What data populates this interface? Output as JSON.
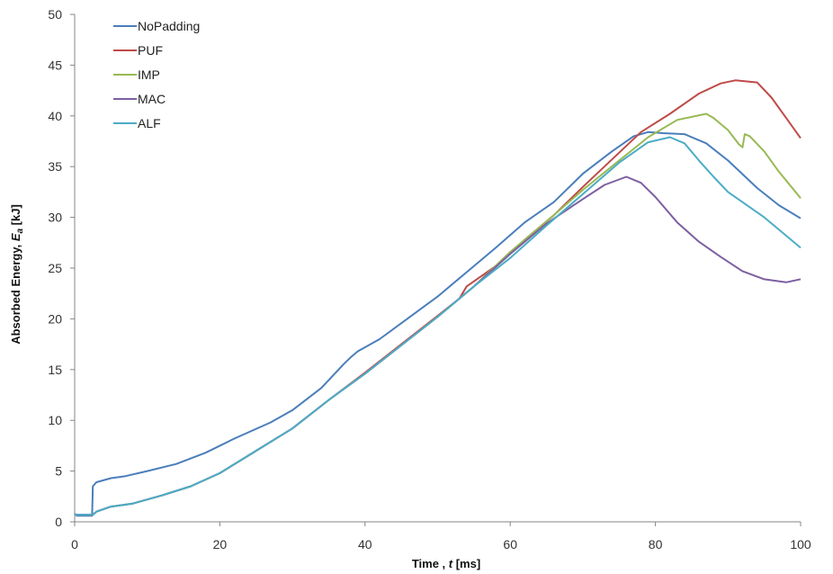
{
  "chart_data": {
    "type": "line",
    "xlabel_prefix": "Time , ",
    "xlabel_var": "t",
    "xlabel_unit": " [ms]",
    "ylabel_prefix": "Absorbed Energy, ",
    "ylabel_var": "E",
    "ylabel_sub": "a",
    "ylabel_unit": " [kJ]",
    "xlim": [
      0,
      100
    ],
    "ylim": [
      0,
      50
    ],
    "xticks": [
      0,
      20,
      40,
      60,
      80,
      100
    ],
    "yticks": [
      0,
      5,
      10,
      15,
      20,
      25,
      30,
      35,
      40,
      45,
      50
    ],
    "grid": false,
    "legend_position": "top-left",
    "series": [
      {
        "name": "NoPadding",
        "color": "#4a7ebb",
        "points": [
          [
            0,
            0.8
          ],
          [
            0.3,
            0.6
          ],
          [
            2.4,
            0.6
          ],
          [
            2.5,
            3.5
          ],
          [
            3,
            3.9
          ],
          [
            5,
            4.3
          ],
          [
            7,
            4.5
          ],
          [
            10,
            5.0
          ],
          [
            14,
            5.7
          ],
          [
            18,
            6.8
          ],
          [
            22,
            8.2
          ],
          [
            27,
            9.8
          ],
          [
            30,
            11.0
          ],
          [
            34,
            13.2
          ],
          [
            37,
            15.5
          ],
          [
            38,
            16.2
          ],
          [
            39,
            16.8
          ],
          [
            42,
            18.0
          ],
          [
            46,
            20.1
          ],
          [
            50,
            22.2
          ],
          [
            54,
            24.6
          ],
          [
            58,
            27.0
          ],
          [
            62,
            29.5
          ],
          [
            66,
            31.5
          ],
          [
            70,
            34.3
          ],
          [
            74,
            36.5
          ],
          [
            77,
            38.0
          ],
          [
            79,
            38.4
          ],
          [
            81,
            38.3
          ],
          [
            84,
            38.2
          ],
          [
            87,
            37.3
          ],
          [
            90,
            35.6
          ],
          [
            94,
            32.9
          ],
          [
            97,
            31.2
          ],
          [
            100,
            29.9
          ]
        ]
      },
      {
        "name": "PUF",
        "color": "#be4b48",
        "points": [
          [
            0,
            0.7
          ],
          [
            2.5,
            0.7
          ],
          [
            3,
            1.0
          ],
          [
            5,
            1.5
          ],
          [
            8,
            1.8
          ],
          [
            12,
            2.6
          ],
          [
            16,
            3.5
          ],
          [
            20,
            4.8
          ],
          [
            25,
            7.0
          ],
          [
            30,
            9.2
          ],
          [
            35,
            12.0
          ],
          [
            40,
            14.7
          ],
          [
            45,
            17.5
          ],
          [
            50,
            20.3
          ],
          [
            53,
            22.0
          ],
          [
            54,
            23.2
          ],
          [
            58,
            25.2
          ],
          [
            62,
            27.8
          ],
          [
            66,
            30.2
          ],
          [
            70,
            33.0
          ],
          [
            74,
            35.7
          ],
          [
            78,
            38.4
          ],
          [
            82,
            40.2
          ],
          [
            86,
            42.2
          ],
          [
            89,
            43.2
          ],
          [
            91,
            43.5
          ],
          [
            94,
            43.3
          ],
          [
            96,
            41.8
          ],
          [
            98,
            39.8
          ],
          [
            100,
            37.8
          ]
        ]
      },
      {
        "name": "IMP",
        "color": "#98b954",
        "points": [
          [
            0,
            0.7
          ],
          [
            2.5,
            0.7
          ],
          [
            3,
            1.0
          ],
          [
            5,
            1.5
          ],
          [
            8,
            1.8
          ],
          [
            12,
            2.6
          ],
          [
            16,
            3.5
          ],
          [
            20,
            4.8
          ],
          [
            25,
            7.0
          ],
          [
            30,
            9.2
          ],
          [
            35,
            12.0
          ],
          [
            40,
            14.6
          ],
          [
            45,
            17.4
          ],
          [
            50,
            20.2
          ],
          [
            55,
            23.2
          ],
          [
            60,
            26.6
          ],
          [
            65,
            29.6
          ],
          [
            70,
            32.7
          ],
          [
            75,
            35.6
          ],
          [
            79,
            37.9
          ],
          [
            83,
            39.6
          ],
          [
            87,
            40.2
          ],
          [
            88,
            39.8
          ],
          [
            90,
            38.6
          ],
          [
            91.5,
            37.2
          ],
          [
            92,
            36.9
          ],
          [
            92.3,
            38.2
          ],
          [
            93,
            38.0
          ],
          [
            95,
            36.5
          ],
          [
            97,
            34.5
          ],
          [
            100,
            31.9
          ]
        ]
      },
      {
        "name": "MAC",
        "color": "#7d5fa0",
        "points": [
          [
            0,
            0.7
          ],
          [
            2.5,
            0.7
          ],
          [
            3,
            1.0
          ],
          [
            5,
            1.5
          ],
          [
            8,
            1.8
          ],
          [
            12,
            2.6
          ],
          [
            16,
            3.5
          ],
          [
            20,
            4.8
          ],
          [
            25,
            7.0
          ],
          [
            30,
            9.2
          ],
          [
            35,
            12.0
          ],
          [
            40,
            14.6
          ],
          [
            45,
            17.4
          ],
          [
            50,
            20.2
          ],
          [
            55,
            23.2
          ],
          [
            60,
            26.4
          ],
          [
            65,
            29.4
          ],
          [
            70,
            31.8
          ],
          [
            73,
            33.2
          ],
          [
            76,
            34.0
          ],
          [
            78,
            33.4
          ],
          [
            80,
            32.0
          ],
          [
            83,
            29.5
          ],
          [
            86,
            27.6
          ],
          [
            89,
            26.1
          ],
          [
            92,
            24.7
          ],
          [
            95,
            23.9
          ],
          [
            98,
            23.6
          ],
          [
            100,
            23.9
          ]
        ]
      },
      {
        "name": "ALF",
        "color": "#4bacc6",
        "points": [
          [
            0,
            0.7
          ],
          [
            2.5,
            0.7
          ],
          [
            3,
            1.0
          ],
          [
            5,
            1.5
          ],
          [
            8,
            1.8
          ],
          [
            12,
            2.6
          ],
          [
            16,
            3.5
          ],
          [
            20,
            4.8
          ],
          [
            25,
            7.0
          ],
          [
            30,
            9.2
          ],
          [
            35,
            12.0
          ],
          [
            40,
            14.6
          ],
          [
            45,
            17.4
          ],
          [
            50,
            20.2
          ],
          [
            55,
            23.2
          ],
          [
            60,
            26.0
          ],
          [
            65,
            29.2
          ],
          [
            70,
            32.3
          ],
          [
            75,
            35.4
          ],
          [
            79,
            37.4
          ],
          [
            82,
            37.9
          ],
          [
            84,
            37.3
          ],
          [
            86,
            35.6
          ],
          [
            88,
            34.0
          ],
          [
            90,
            32.5
          ],
          [
            93,
            31.0
          ],
          [
            95,
            30.0
          ],
          [
            97,
            28.8
          ],
          [
            100,
            27.0
          ]
        ]
      }
    ]
  }
}
